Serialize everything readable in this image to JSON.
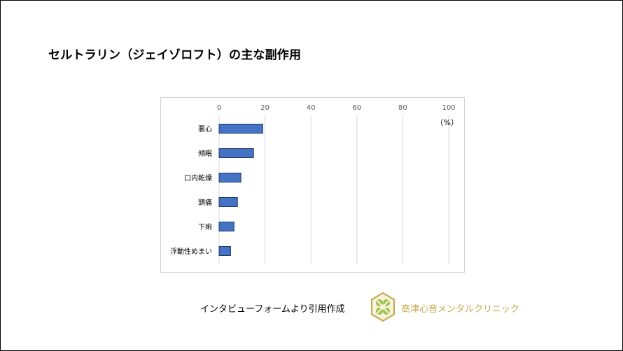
{
  "slide": {
    "title": "セルトラリン（ジェイゾロフト）の主な副作用",
    "source": "インタビューフォームより引用作成",
    "clinic_name": "高津心音メンタルクリニック",
    "logo_icon": "clover-hexagon-logo",
    "accent_color": "#c4a84a",
    "bar_color": "#4472c4",
    "bar_border": "#1f3864"
  },
  "chart_data": {
    "type": "bar",
    "orientation": "horizontal",
    "title": "",
    "unit_label": "（%）",
    "xlim": [
      0,
      100
    ],
    "ticks": [
      0,
      20,
      40,
      60,
      80,
      100
    ],
    "categories": [
      "悪心",
      "傾眠",
      "口内乾燥",
      "頭痛",
      "下痢",
      "浮動性めまい"
    ],
    "values": [
      19,
      15,
      9.5,
      8,
      6.5,
      5
    ],
    "grid": true,
    "axis_position": "top"
  }
}
